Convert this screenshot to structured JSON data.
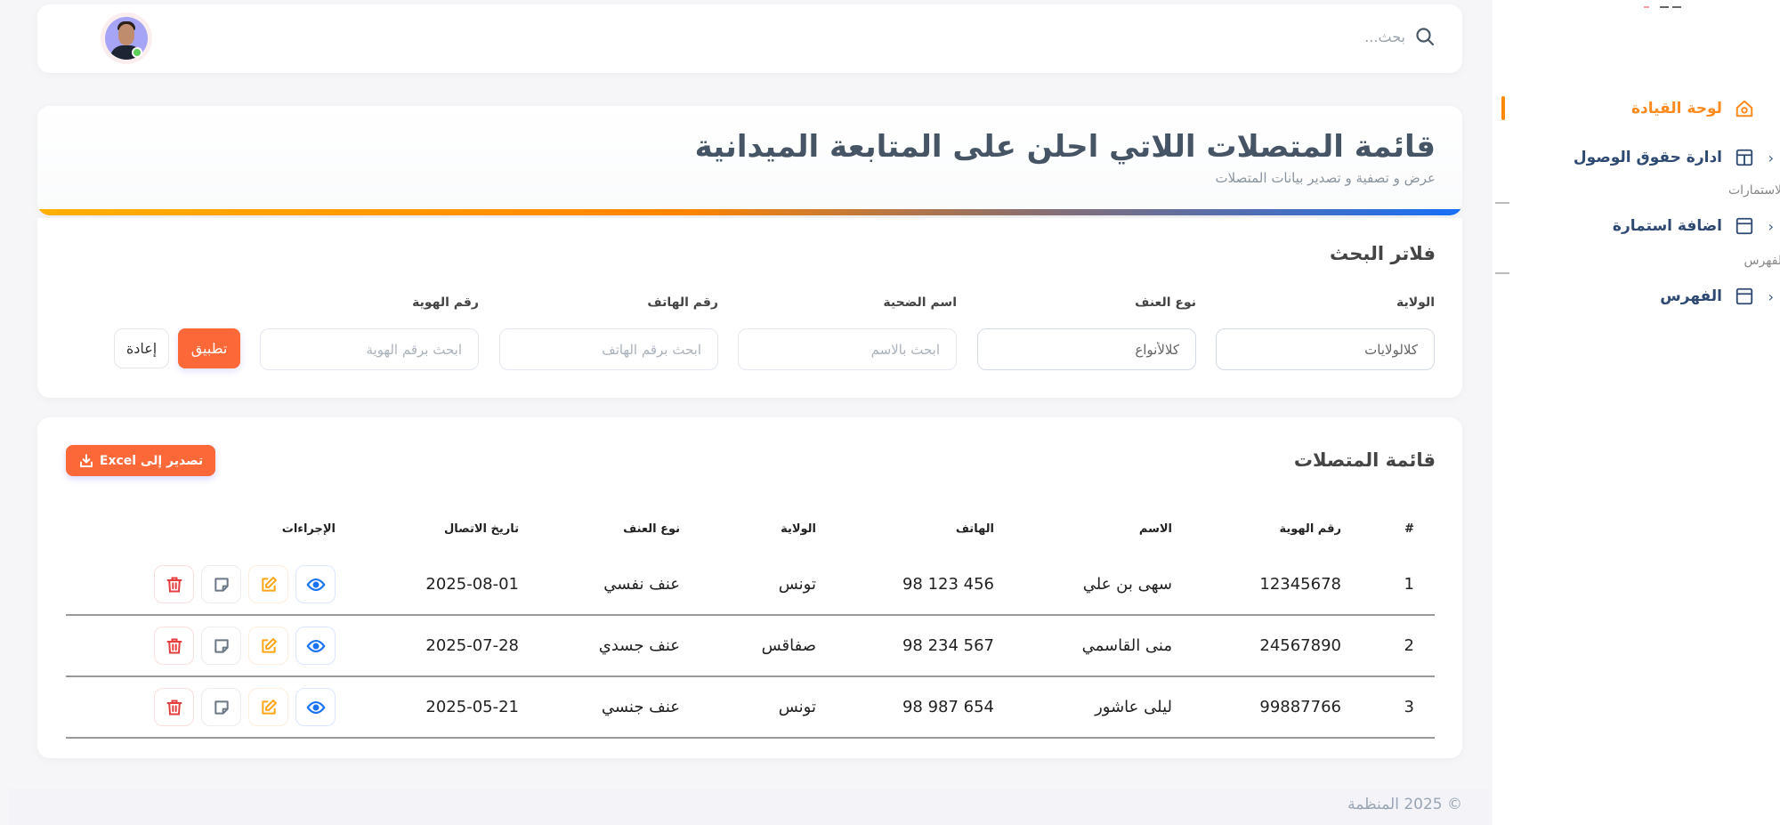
{
  "topbar": {
    "search_placeholder": "بحث...",
    "search_icon": "search-icon",
    "avatar_status": "online"
  },
  "header": {
    "title": "قائمة المتصلات اللاتي احلن على المتابعة الميدانية",
    "subtitle": "عرض و تصفية و تصدير بيانات المتصلات"
  },
  "filters": {
    "title": "فلاتر البحث",
    "fields": [
      {
        "label": "الولاية",
        "value": "كلالولايات",
        "type": "select"
      },
      {
        "label": "نوع العنف",
        "value": "كلالأنواع",
        "type": "select"
      },
      {
        "label": "اسم الضحية",
        "placeholder": "ابحث بالاسم",
        "type": "text"
      },
      {
        "label": "رقم الهاتف",
        "placeholder": "ابحث برقم الهاتف",
        "type": "text"
      },
      {
        "label": "رقم الهوية",
        "placeholder": "ابحث برقم الهوية",
        "type": "text"
      }
    ],
    "apply_label": "تطبيق",
    "reset_label": "إعادة"
  },
  "table": {
    "title": "قائمة المتصلات",
    "export_label": "تصدير إلى Excel",
    "columns": [
      "#",
      "رقم الهوية",
      "الاسم",
      "الهاتف",
      "الولاية",
      "نوع العنف",
      "تاريخ الاتصال",
      "الإجراءات"
    ],
    "rows": [
      [
        "1",
        "12345678",
        "سهى بن علي",
        "98 123 456",
        "تونس",
        "عنف نفسي",
        "2025-08-01"
      ],
      [
        "2",
        "24567890",
        "منى القاسمي",
        "98 234 567",
        "صفاقس",
        "عنف جسدي",
        "2025-07-28"
      ],
      [
        "3",
        "99887766",
        "ليلى عاشور",
        "98 987 654",
        "تونس",
        "عنف جنسي",
        "2025-05-21"
      ]
    ],
    "actions": [
      "view",
      "edit",
      "note",
      "delete"
    ]
  },
  "footer": {
    "text": "© 2025 المنظمة"
  },
  "sidebar": {
    "items": [
      {
        "label": "لوحة القيادة",
        "icon": "home-icon",
        "active": true
      },
      {
        "label": "ادارة حقوق الوصول",
        "icon": "layout-icon"
      },
      {
        "label": "اضافة استمارة",
        "icon": "window-icon"
      },
      {
        "label": "الفهرس",
        "icon": "window-icon"
      }
    ],
    "sections": [
      "الاستمارات",
      "الفهرس"
    ]
  },
  "colors": {
    "accent": "#fd6838",
    "active": "#ff8a1d",
    "nav": "#2e4a72",
    "view": "#1a73f5",
    "edit": "#ffa516",
    "note": "#6b7785",
    "delete": "#e43d3d"
  }
}
